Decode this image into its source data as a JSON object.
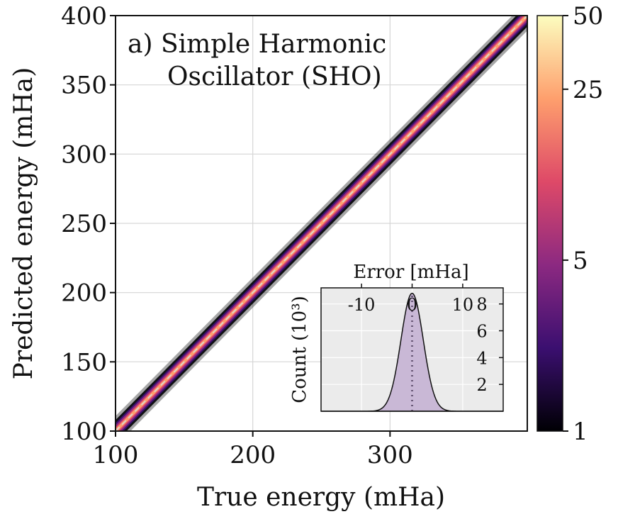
{
  "chart_data": [
    {
      "type": "heatmap",
      "title_lines": [
        "a) Simple Harmonic",
        "Oscillator (SHO)"
      ],
      "xlabel": "True energy (mHa)",
      "ylabel": "Predicted energy (mHa)",
      "xlim": [
        100,
        400
      ],
      "ylim": [
        100,
        400
      ],
      "xticks": [
        100,
        200,
        300
      ],
      "yticks": [
        100,
        150,
        200,
        250,
        300,
        350,
        400
      ],
      "grid": true,
      "reference_line": "y = x",
      "colorbar": {
        "scale": "log",
        "range": [
          1,
          50
        ],
        "ticks": [
          1,
          5,
          25,
          50
        ],
        "colormap": "magma",
        "colors": [
          "#000004",
          "#3b0f70",
          "#8c2981",
          "#de4968",
          "#fe9f6d",
          "#fcfdbf"
        ]
      }
    },
    {
      "type": "area",
      "xlabel": "Error [mHa]",
      "ylabel": "Count (10³)",
      "xlim": [
        -18,
        18
      ],
      "ylim": [
        0,
        9.2
      ],
      "xticks": [
        -10,
        0,
        10
      ],
      "yticks": [
        2,
        4,
        6,
        8
      ],
      "distribution": {
        "mean": 0,
        "peak_count": 8.8,
        "std": 2.2
      },
      "fill_color": "#c9b8d6",
      "background_color": "#ebebeb",
      "marker_line": "dotted at 0"
    }
  ]
}
